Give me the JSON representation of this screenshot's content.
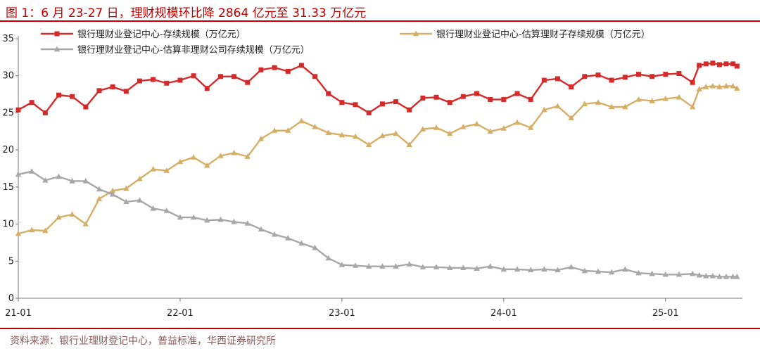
{
  "figure": {
    "title": "图 1：6 月 23-27 日，理财规模环比降 2864 亿元至 31.33 万亿元",
    "source": "资料来源：银行业理财登记中心，普益标准，华西证券研究所"
  },
  "colors": {
    "accent": "#c00000",
    "series": [
      "#d42a2a",
      "#d6ae66",
      "#a8a8a8"
    ],
    "axis": "#777777",
    "source_text": "#8a5a5a"
  },
  "chart_data": {
    "type": "line",
    "title": "图 1：6 月 23-27 日，理财规模环比降 2864 亿元至 31.33 万亿元",
    "xlabel": "",
    "ylabel": "",
    "ylim": [
      0,
      35
    ],
    "yticks": [
      0,
      5,
      10,
      15,
      20,
      25,
      30,
      35
    ],
    "xlim": [
      0,
      53.7
    ],
    "xticks": [
      {
        "label": "21-01",
        "x": 0
      },
      {
        "label": "22-01",
        "x": 12
      },
      {
        "label": "23-01",
        "x": 24
      },
      {
        "label": "24-01",
        "x": 36
      },
      {
        "label": "25-01",
        "x": 48
      }
    ],
    "grid": false,
    "legend": "top",
    "series": [
      {
        "name": "银行理财业登记中心-存续规模（万亿元）",
        "marker": "square",
        "x": [
          0,
          1,
          2,
          3,
          4,
          5,
          6,
          7,
          8,
          9,
          10,
          11,
          12,
          13,
          14,
          15,
          16,
          17,
          18,
          19,
          20,
          21,
          22,
          23,
          24,
          25,
          26,
          27,
          28,
          29,
          30,
          31,
          32,
          33,
          34,
          35,
          36,
          37,
          38,
          39,
          40,
          41,
          42,
          43,
          44,
          45,
          46,
          47,
          48,
          49,
          50,
          50.5,
          51,
          51.5,
          52,
          52.5,
          53,
          53.3
        ],
        "values": [
          25.4,
          26.4,
          25.0,
          27.4,
          27.2,
          25.8,
          28.0,
          28.5,
          27.9,
          29.3,
          29.5,
          29.0,
          29.4,
          30.0,
          28.3,
          29.9,
          29.9,
          29.1,
          30.8,
          31.1,
          30.6,
          31.4,
          29.9,
          27.6,
          26.4,
          26.1,
          25.0,
          26.2,
          26.5,
          25.4,
          27.0,
          27.1,
          26.4,
          27.2,
          27.6,
          26.8,
          26.8,
          27.6,
          26.8,
          29.4,
          29.6,
          28.5,
          29.9,
          30.1,
          29.4,
          29.8,
          30.2,
          29.9,
          30.2,
          30.3,
          29.1,
          31.4,
          31.6,
          31.7,
          31.5,
          31.6,
          31.6,
          31.3
        ]
      },
      {
        "name": "银行理财业登记中心-估算理财子存续规模（万亿元）",
        "marker": "triangle",
        "x": [
          0,
          1,
          2,
          3,
          4,
          5,
          6,
          7,
          8,
          9,
          10,
          11,
          12,
          13,
          14,
          15,
          16,
          17,
          18,
          19,
          20,
          21,
          22,
          23,
          24,
          25,
          26,
          27,
          28,
          29,
          30,
          31,
          32,
          33,
          34,
          35,
          36,
          37,
          38,
          39,
          40,
          41,
          42,
          43,
          44,
          45,
          46,
          47,
          48,
          49,
          50,
          50.5,
          51,
          51.5,
          52,
          52.5,
          53,
          53.3
        ],
        "values": [
          8.7,
          9.2,
          9.1,
          10.9,
          11.3,
          10.0,
          13.4,
          14.5,
          14.8,
          16.1,
          17.4,
          17.2,
          18.4,
          19.0,
          17.9,
          19.2,
          19.6,
          19.1,
          21.5,
          22.6,
          22.6,
          23.9,
          23.1,
          22.3,
          22.0,
          21.8,
          20.7,
          21.9,
          22.2,
          20.7,
          22.8,
          23.0,
          22.2,
          23.1,
          23.5,
          22.5,
          22.9,
          23.7,
          23.0,
          25.4,
          25.9,
          24.3,
          26.2,
          26.4,
          25.8,
          25.8,
          26.8,
          26.6,
          26.9,
          27.1,
          25.8,
          28.2,
          28.5,
          28.6,
          28.5,
          28.6,
          28.6,
          28.3
        ]
      },
      {
        "name": "银行理财业登记中心-估算非理财公司存续规模（万亿元）",
        "marker": "triangle",
        "x": [
          0,
          1,
          2,
          3,
          4,
          5,
          6,
          7,
          8,
          9,
          10,
          11,
          12,
          13,
          14,
          15,
          16,
          17,
          18,
          19,
          20,
          21,
          22,
          23,
          24,
          25,
          26,
          27,
          28,
          29,
          30,
          31,
          32,
          33,
          34,
          35,
          36,
          37,
          38,
          39,
          40,
          41,
          42,
          43,
          44,
          45,
          46,
          47,
          48,
          49,
          50,
          50.5,
          51,
          51.5,
          52,
          52.5,
          53,
          53.3
        ],
        "values": [
          16.7,
          17.1,
          15.9,
          16.4,
          15.8,
          15.8,
          14.7,
          14.0,
          13.0,
          13.2,
          12.1,
          11.8,
          10.9,
          10.9,
          10.5,
          10.6,
          10.3,
          10.1,
          9.3,
          8.6,
          8.1,
          7.4,
          6.8,
          5.4,
          4.5,
          4.4,
          4.3,
          4.3,
          4.3,
          4.6,
          4.2,
          4.2,
          4.1,
          4.1,
          4.0,
          4.3,
          3.9,
          3.9,
          3.8,
          3.9,
          3.8,
          4.2,
          3.7,
          3.6,
          3.5,
          3.9,
          3.4,
          3.3,
          3.2,
          3.2,
          3.3,
          3.1,
          3.0,
          3.0,
          2.9,
          2.9,
          2.9,
          2.9
        ]
      }
    ]
  }
}
